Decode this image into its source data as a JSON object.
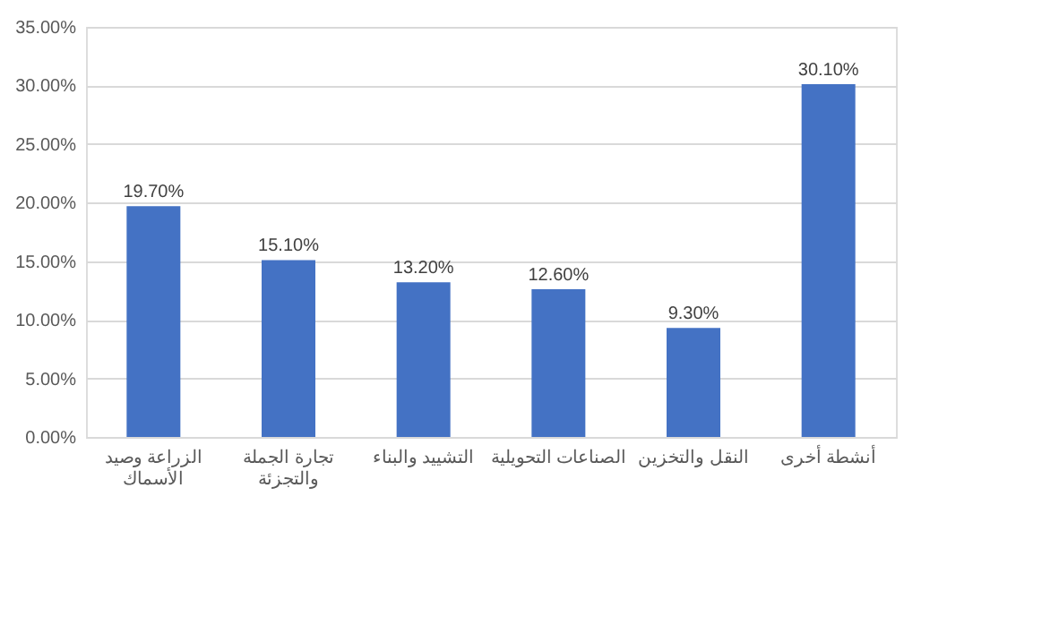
{
  "chart_data": {
    "type": "bar",
    "categories": [
      "الزراعة وصيد الأسماك",
      "تجارة الجملة والتجزئة",
      "التشييد والبناء",
      "الصناعات التحويلية",
      "النقل والتخزين",
      "أنشطة أخرى"
    ],
    "values": [
      19.7,
      15.1,
      13.2,
      12.6,
      9.3,
      30.1
    ],
    "value_labels": [
      "19.70%",
      "15.10%",
      "13.20%",
      "12.60%",
      "9.30%",
      "30.10%"
    ],
    "color": "#4472c4",
    "ylim": [
      0,
      35
    ],
    "yticks": [
      {
        "value": 0,
        "label": "0.00%"
      },
      {
        "value": 5,
        "label": "5.00%"
      },
      {
        "value": 10,
        "label": "10.00%"
      },
      {
        "value": 15,
        "label": "15.00%"
      },
      {
        "value": 20,
        "label": "20.00%"
      },
      {
        "value": 25,
        "label": "25.00%"
      },
      {
        "value": 30,
        "label": "30.00%"
      },
      {
        "value": 35,
        "label": "35.00%"
      }
    ],
    "grid": "y"
  }
}
